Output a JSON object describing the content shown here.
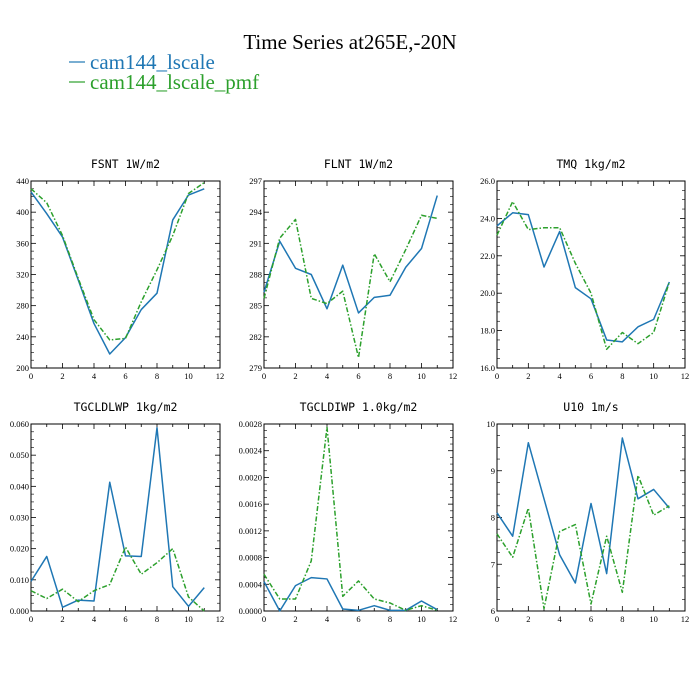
{
  "figure": {
    "title": "Time Series at265E,-20N",
    "legend": [
      {
        "label": "cam144_lscale",
        "color": "#1f77b4"
      },
      {
        "label": "cam144_lscale_pmf",
        "color": "#2ca02c"
      }
    ]
  },
  "chart_data": [
    {
      "type": "line",
      "title": "FSNT   1W/m2",
      "x": [
        0,
        1,
        2,
        3,
        4,
        5,
        6,
        7,
        8,
        9,
        10,
        11
      ],
      "xlim": [
        0,
        12
      ],
      "xticks": [
        "0",
        "2",
        "4",
        "6",
        "8",
        "10",
        "12"
      ],
      "ylim": [
        200,
        440
      ],
      "yticks": [
        "200",
        "240",
        "280",
        "320",
        "360",
        "400",
        "440"
      ],
      "series": [
        {
          "name": "cam144_lscale",
          "color": "#1f77b4",
          "values": [
            426,
            398,
            368,
            313,
            257,
            218,
            239,
            275,
            296,
            390,
            422,
            430
          ]
        },
        {
          "name": "cam144_lscale_pmf",
          "color": "#2ca02c",
          "dashed": true,
          "values": [
            430,
            412,
            370,
            315,
            262,
            236,
            238,
            285,
            326,
            370,
            424,
            438
          ]
        }
      ]
    },
    {
      "type": "line",
      "title": "FLNT   1W/m2",
      "x": [
        0,
        1,
        2,
        3,
        4,
        5,
        6,
        7,
        8,
        9,
        10,
        11
      ],
      "xlim": [
        0,
        12
      ],
      "xticks": [
        "0",
        "2",
        "4",
        "6",
        "8",
        "10",
        "12"
      ],
      "ylim": [
        279,
        297
      ],
      "yticks": [
        "279",
        "282",
        "285",
        "288",
        "291",
        "294",
        "297"
      ],
      "series": [
        {
          "name": "cam144_lscale",
          "color": "#1f77b4",
          "values": [
            286.3,
            291.2,
            288.6,
            288.0,
            284.7,
            288.9,
            284.3,
            285.8,
            286.0,
            288.7,
            290.5,
            295.6
          ]
        },
        {
          "name": "cam144_lscale_pmf",
          "color": "#2ca02c",
          "dashed": true,
          "values": [
            285.7,
            291.5,
            293.3,
            285.7,
            285.2,
            286.4,
            280.0,
            290.0,
            287.3,
            290.4,
            293.7,
            293.4
          ]
        }
      ]
    },
    {
      "type": "line",
      "title": "TMQ   1kg/m2",
      "x": [
        0,
        1,
        2,
        3,
        4,
        5,
        6,
        7,
        8,
        9,
        10,
        11
      ],
      "xlim": [
        0,
        12
      ],
      "xticks": [
        "0",
        "2",
        "4",
        "6",
        "8",
        "10",
        "12"
      ],
      "ylim": [
        16.0,
        26.0
      ],
      "yticks": [
        "16.0",
        "18.0",
        "20.0",
        "22.0",
        "24.0",
        "26.0"
      ],
      "series": [
        {
          "name": "cam144_lscale",
          "color": "#1f77b4",
          "values": [
            23.6,
            24.3,
            24.2,
            21.4,
            23.3,
            20.3,
            19.7,
            17.5,
            17.4,
            18.2,
            18.6,
            20.6
          ]
        },
        {
          "name": "cam144_lscale_pmf",
          "color": "#2ca02c",
          "dashed": true,
          "values": [
            23.1,
            24.9,
            23.4,
            23.5,
            23.5,
            21.6,
            20.0,
            17.0,
            17.9,
            17.3,
            17.9,
            20.6
          ]
        }
      ]
    },
    {
      "type": "line",
      "title": "TGCLDLWP   1kg/m2",
      "x": [
        0,
        1,
        2,
        3,
        4,
        5,
        6,
        7,
        8,
        9,
        10,
        11
      ],
      "xlim": [
        0,
        12
      ],
      "xticks": [
        "0",
        "2",
        "4",
        "6",
        "8",
        "10",
        "12"
      ],
      "ylim": [
        0.0,
        0.06
      ],
      "yticks": [
        "0.000",
        "0.010",
        "0.020",
        "0.030",
        "0.040",
        "0.050",
        "0.060"
      ],
      "series": [
        {
          "name": "cam144_lscale",
          "color": "#1f77b4",
          "values": [
            0.0095,
            0.0175,
            0.0012,
            0.0035,
            0.0032,
            0.0413,
            0.0177,
            0.0175,
            0.0588,
            0.0078,
            0.0015,
            0.0075
          ]
        },
        {
          "name": "cam144_lscale_pmf",
          "color": "#2ca02c",
          "dashed": true,
          "values": [
            0.0065,
            0.004,
            0.007,
            0.003,
            0.0065,
            0.0085,
            0.0205,
            0.0118,
            0.0155,
            0.02,
            0.0045,
            0.0
          ]
        }
      ]
    },
    {
      "type": "line",
      "title": "TGCLDIWP   1.0kg/m2",
      "x": [
        0,
        1,
        2,
        3,
        4,
        5,
        6,
        7,
        8,
        9,
        10,
        11
      ],
      "xlim": [
        0,
        12
      ],
      "xticks": [
        "0",
        "2",
        "4",
        "6",
        "8",
        "10",
        "12"
      ],
      "ylim": [
        0.0,
        0.0028
      ],
      "yticks": [
        "0.0000",
        "0.0004",
        "0.0008",
        "0.0012",
        "0.0016",
        "0.0020",
        "0.0024",
        "0.0028"
      ],
      "series": [
        {
          "name": "cam144_lscale",
          "color": "#1f77b4",
          "values": [
            0.00044,
            0.0,
            0.00038,
            0.0005,
            0.00048,
            3e-05,
            1e-05,
            8e-05,
            1e-05,
            1e-05,
            0.00015,
            2e-05
          ]
        },
        {
          "name": "cam144_lscale_pmf",
          "color": "#2ca02c",
          "dashed": true,
          "values": [
            0.00055,
            0.00018,
            0.00018,
            0.00075,
            0.00275,
            0.00022,
            0.00045,
            0.00018,
            0.00012,
            1e-05,
            8e-05,
            1e-05
          ]
        }
      ]
    },
    {
      "type": "line",
      "title": "U10   1m/s",
      "x": [
        0,
        1,
        2,
        3,
        4,
        5,
        6,
        7,
        8,
        9,
        10,
        11
      ],
      "xlim": [
        0,
        12
      ],
      "xticks": [
        "0",
        "2",
        "4",
        "6",
        "8",
        "10",
        "12"
      ],
      "ylim": [
        6,
        10
      ],
      "yticks": [
        "6",
        "7",
        "8",
        "9",
        "10"
      ],
      "series": [
        {
          "name": "cam144_lscale",
          "color": "#1f77b4",
          "values": [
            8.1,
            7.6,
            9.6,
            8.4,
            7.2,
            6.6,
            8.3,
            6.8,
            9.7,
            8.4,
            8.6,
            8.2
          ]
        },
        {
          "name": "cam144_lscale_pmf",
          "color": "#2ca02c",
          "dashed": true,
          "values": [
            7.65,
            7.15,
            8.2,
            6.05,
            7.7,
            7.85,
            6.15,
            7.6,
            6.4,
            8.9,
            8.05,
            8.25
          ]
        }
      ]
    }
  ]
}
